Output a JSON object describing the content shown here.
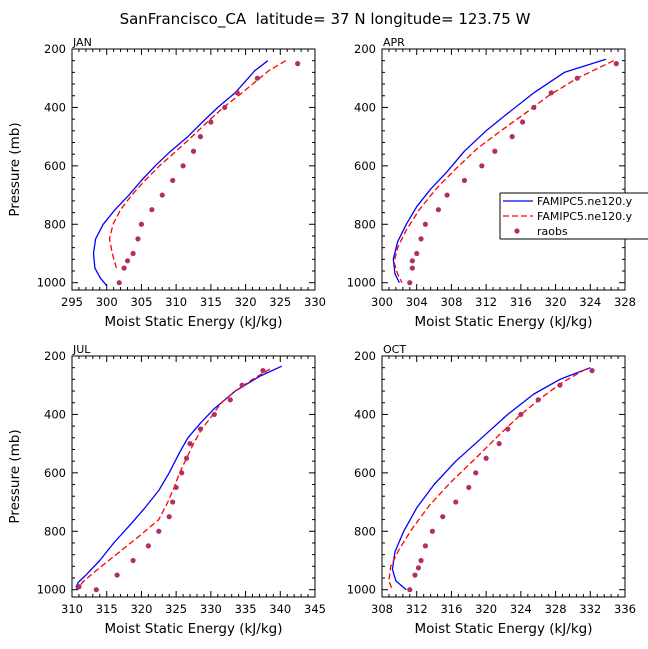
{
  "figure": {
    "title": "SanFrancisco_CA  latitude= 37 N longitude= 123.75 W"
  },
  "legend": {
    "entries": [
      {
        "label": "FAMIPC5.ne120.y",
        "style": "solid",
        "color": "#0000ff"
      },
      {
        "label": "FAMIPC5.ne120.y",
        "style": "dashed",
        "color": "#ff0000"
      },
      {
        "label": "raobs",
        "style": "marker",
        "color": "#b03060"
      }
    ],
    "placement": "right-middle of APR panel"
  },
  "chart_data": [
    {
      "type": "line",
      "panel": "JAN",
      "xlabel": "Moist Static Energy (kJ/kg)",
      "ylabel": "Pressure (mb)",
      "xlim": [
        295,
        330
      ],
      "xticks": [
        295,
        300,
        305,
        310,
        315,
        320,
        325,
        330
      ],
      "ylim": [
        1025,
        200
      ],
      "yticks": [
        200,
        400,
        600,
        800,
        1000
      ],
      "series": [
        {
          "name": "FAMIPC5.ne120.y",
          "style": "solid",
          "color": "#0000ff",
          "x": [
            323.2,
            321.3,
            318.5,
            316.0,
            313.8,
            311.7,
            309.2,
            307.0,
            305.0,
            303.2,
            301.2,
            299.5,
            298.4,
            298.1,
            298.3,
            299.1,
            300.0
          ],
          "y": [
            240,
            275,
            350,
            400,
            450,
            500,
            550,
            600,
            650,
            700,
            750,
            800,
            850,
            900,
            950,
            985,
            1010
          ]
        },
        {
          "name": "FAMIPC5.ne120.y",
          "style": "dashed",
          "color": "#ff0000",
          "x": [
            325.8,
            323.3,
            319.5,
            316.8,
            314.5,
            312.3,
            310.0,
            307.6,
            305.5,
            303.6,
            302.0,
            300.9,
            300.4,
            300.8,
            301.4
          ],
          "y": [
            240,
            275,
            350,
            400,
            450,
            500,
            550,
            600,
            650,
            700,
            750,
            800,
            850,
            900,
            950
          ]
        },
        {
          "name": "raobs",
          "style": "marker",
          "color": "#b03060",
          "x": [
            327.5,
            321.7,
            318.8,
            317.0,
            315.0,
            313.5,
            312.5,
            311.0,
            309.5,
            308.0,
            306.5,
            305.0,
            304.5,
            303.8,
            303.0,
            302.5,
            301.8
          ],
          "y": [
            250,
            300,
            350,
            400,
            450,
            500,
            550,
            600,
            650,
            700,
            750,
            800,
            850,
            900,
            925,
            950,
            1000
          ]
        }
      ]
    },
    {
      "type": "line",
      "panel": "APR",
      "xlabel": "Moist Static Energy (kJ/kg)",
      "ylabel": "",
      "xlim": [
        300,
        328
      ],
      "xticks": [
        300,
        304,
        308,
        312,
        316,
        320,
        324,
        328
      ],
      "ylim": [
        1025,
        200
      ],
      "yticks": [
        200,
        400,
        600,
        800,
        1000
      ],
      "series": [
        {
          "name": "FAMIPC5.ne120.y",
          "style": "solid",
          "color": "#0000ff",
          "x": [
            325.8,
            321.0,
            317.5,
            314.5,
            312.0,
            309.5,
            307.5,
            305.6,
            304.0,
            302.8,
            301.8,
            301.3,
            301.5,
            302.0
          ],
          "y": [
            235,
            280,
            350,
            420,
            480,
            550,
            620,
            680,
            740,
            800,
            860,
            920,
            970,
            1000
          ]
        },
        {
          "name": "FAMIPC5.ne120.y",
          "style": "dashed",
          "color": "#ff0000",
          "x": [
            326.7,
            322.5,
            319.2,
            316.5,
            313.7,
            311.0,
            308.5,
            306.2,
            304.3,
            302.8,
            301.8,
            301.4,
            301.8,
            302.3
          ],
          "y": [
            240,
            300,
            360,
            420,
            480,
            540,
            610,
            680,
            750,
            820,
            880,
            930,
            970,
            1000
          ]
        },
        {
          "name": "raobs",
          "style": "marker",
          "color": "#b03060",
          "x": [
            327.0,
            322.5,
            319.5,
            317.5,
            316.2,
            315.0,
            313.0,
            311.5,
            309.5,
            307.5,
            306.5,
            305.0,
            304.5,
            304.0,
            303.5,
            303.5,
            303.2
          ],
          "y": [
            250,
            300,
            350,
            400,
            450,
            500,
            550,
            600,
            650,
            700,
            750,
            800,
            850,
            900,
            925,
            950,
            1000
          ]
        }
      ]
    },
    {
      "type": "line",
      "panel": "JUL",
      "xlabel": "Moist Static Energy (kJ/kg)",
      "ylabel": "Pressure (mb)",
      "xlim": [
        310,
        345
      ],
      "xticks": [
        310,
        315,
        320,
        325,
        330,
        335,
        340,
        345
      ],
      "ylim": [
        1025,
        200
      ],
      "yticks": [
        200,
        400,
        600,
        800,
        1000
      ],
      "series": [
        {
          "name": "FAMIPC5.ne120.y",
          "style": "solid",
          "color": "#0000ff",
          "x": [
            340.2,
            337.0,
            333.5,
            330.5,
            328.5,
            326.7,
            325.5,
            324.0,
            322.5,
            320.5,
            318.3,
            316.0,
            314.0,
            312.0,
            310.9,
            310.6,
            310.8
          ],
          "y": [
            235,
            270,
            320,
            380,
            430,
            480,
            530,
            600,
            660,
            720,
            780,
            840,
            900,
            950,
            975,
            990,
            1000
          ]
        },
        {
          "name": "FAMIPC5.ne120.y",
          "style": "dashed",
          "color": "#ff0000",
          "x": [
            338.5,
            336.0,
            333.5,
            331.5,
            330.0,
            328.7,
            327.5,
            326.3,
            325.5,
            324.7,
            323.8,
            322.5,
            319.5,
            315.8,
            313.2,
            311.5,
            310.8
          ],
          "y": [
            245,
            280,
            320,
            360,
            410,
            450,
            500,
            560,
            600,
            650,
            700,
            760,
            820,
            890,
            940,
            975,
            1000
          ]
        },
        {
          "name": "raobs",
          "style": "marker",
          "color": "#b03060",
          "x": [
            337.5,
            334.5,
            332.8,
            330.5,
            328.5,
            327.0,
            326.5,
            325.8,
            325.0,
            324.5,
            324.0,
            322.5,
            321.0,
            318.8,
            316.5,
            313.5,
            311.0
          ],
          "y": [
            250,
            300,
            350,
            400,
            450,
            500,
            550,
            600,
            650,
            700,
            750,
            800,
            850,
            900,
            950,
            1000,
            990
          ]
        }
      ]
    },
    {
      "type": "line",
      "panel": "OCT",
      "xlabel": "Moist Static Energy (kJ/kg)",
      "ylabel": "",
      "xlim": [
        308,
        336
      ],
      "xticks": [
        308,
        312,
        316,
        320,
        324,
        328,
        332,
        336
      ],
      "ylim": [
        1025,
        200
      ],
      "yticks": [
        200,
        400,
        600,
        800,
        1000
      ],
      "series": [
        {
          "name": "FAMIPC5.ne120.y",
          "style": "solid",
          "color": "#0000ff",
          "x": [
            332.0,
            328.5,
            325.5,
            322.5,
            319.5,
            316.5,
            314.0,
            312.0,
            310.5,
            309.5,
            309.2,
            309.6,
            310.8
          ],
          "y": [
            240,
            280,
            330,
            400,
            480,
            560,
            640,
            720,
            800,
            870,
            930,
            970,
            1000
          ]
        },
        {
          "name": "FAMIPC5.ne120.y",
          "style": "dashed",
          "color": "#ff0000",
          "x": [
            331.5,
            328.8,
            326.5,
            324.0,
            321.5,
            318.8,
            316.0,
            313.5,
            311.5,
            310.0,
            309.0,
            308.8,
            309.2
          ],
          "y": [
            245,
            290,
            340,
            400,
            470,
            550,
            630,
            710,
            790,
            860,
            920,
            970,
            1000
          ]
        },
        {
          "name": "raobs",
          "style": "marker",
          "color": "#b03060",
          "x": [
            332.2,
            328.5,
            326.0,
            324.0,
            322.5,
            321.5,
            320.0,
            318.8,
            318.0,
            316.5,
            315.0,
            313.8,
            313.0,
            312.5,
            312.2,
            311.8,
            311.2
          ],
          "y": [
            250,
            300,
            350,
            400,
            450,
            500,
            550,
            600,
            650,
            700,
            750,
            800,
            850,
            900,
            925,
            950,
            1000
          ]
        }
      ]
    }
  ]
}
